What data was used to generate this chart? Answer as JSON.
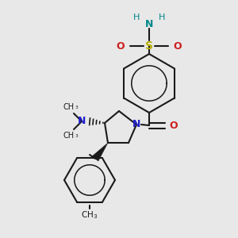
{
  "bg_color": "#e8e8e8",
  "bond_color": "#1a1a1a",
  "n_color": "#2020cc",
  "o_color": "#cc2020",
  "s_color": "#b8b000",
  "nh2_color": "#008888",
  "fig_size": [
    3.0,
    3.0
  ],
  "dpi": 100,
  "xlim": [
    0,
    300
  ],
  "ylim": [
    0,
    300
  ],
  "lw": 1.5
}
